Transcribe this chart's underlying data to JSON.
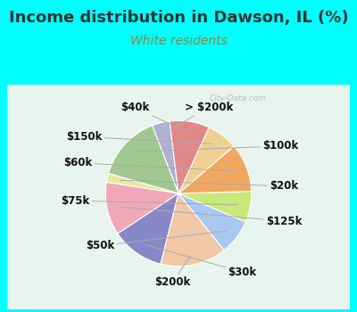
{
  "title": "Income distribution in Dawson, IL (%)",
  "subtitle": "White residents",
  "title_color": "#333333",
  "subtitle_color": "#888844",
  "background_color": "#00ffff",
  "watermark": "City-Data.com",
  "segments": [
    {
      "label": "> $200k",
      "value": 4,
      "color": "#b0b0d0"
    },
    {
      "label": "$100k",
      "value": 15,
      "color": "#a0c890"
    },
    {
      "label": "$20k",
      "value": 2,
      "color": "#e8e8a0"
    },
    {
      "label": "$125k",
      "value": 12,
      "color": "#f0a8b8"
    },
    {
      "label": "$30k",
      "value": 12,
      "color": "#8888c8"
    },
    {
      "label": "$200k",
      "value": 15,
      "color": "#f0c8a8"
    },
    {
      "label": "$50k",
      "value": 8,
      "color": "#a8c8f0"
    },
    {
      "label": "$75k",
      "value": 7,
      "color": "#c8e878"
    },
    {
      "label": "$60k",
      "value": 11,
      "color": "#f0a860"
    },
    {
      "label": "$150k",
      "value": 7,
      "color": "#f0d090"
    },
    {
      "label": "$40k",
      "value": 9,
      "color": "#e08888"
    }
  ],
  "label_fontsize": 8.5,
  "title_fontsize": 13,
  "subtitle_fontsize": 10,
  "start_angle": 97
}
